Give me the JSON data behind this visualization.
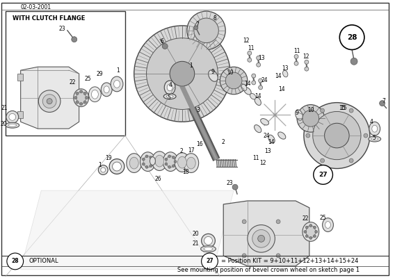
{
  "title_date": "02-03-2001",
  "inset_label": "WITH CLUTCH FLANGE",
  "bg_color": "#ffffff",
  "bottom_text1": "= Position KIT = 9+10+11+12+13+14+15+24",
  "bottom_text2": "See mounting position of bevel crown wheel on sketch page 1",
  "optional_label": "OPTIONAL",
  "figsize": [
    5.68,
    4.0
  ],
  "dpi": 100
}
